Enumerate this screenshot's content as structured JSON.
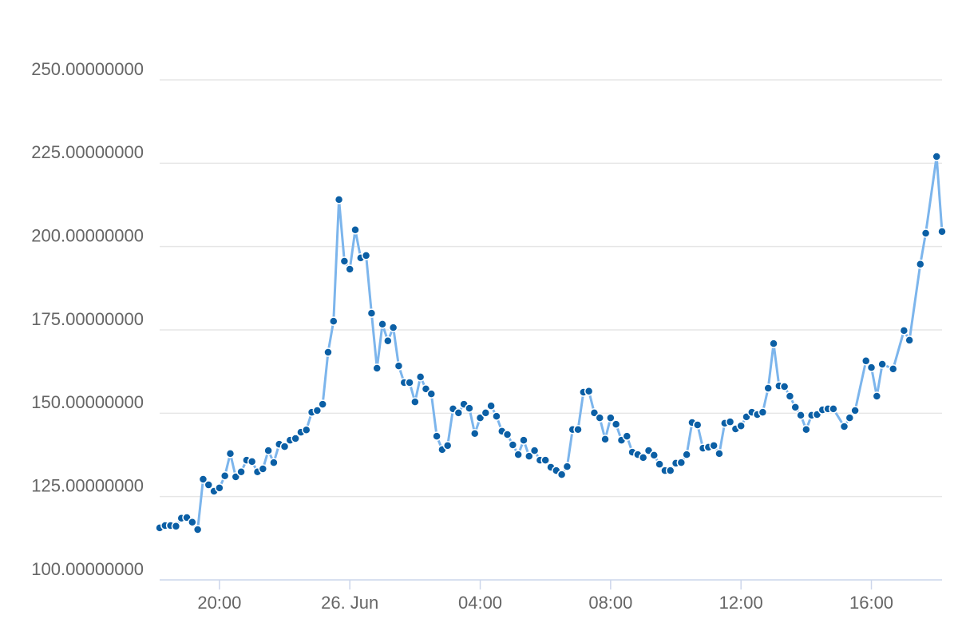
{
  "chart_data": {
    "type": "line",
    "x": [
      "06-25 18:10",
      "06-25 18:20",
      "06-25 18:30",
      "06-25 18:40",
      "06-25 18:50",
      "06-25 19:00",
      "06-25 19:10",
      "06-25 19:20",
      "06-25 19:30",
      "06-25 19:40",
      "06-25 19:50",
      "06-25 20:00",
      "06-25 20:10",
      "06-25 20:20",
      "06-25 20:30",
      "06-25 20:40",
      "06-25 20:50",
      "06-25 21:00",
      "06-25 21:10",
      "06-25 21:20",
      "06-25 21:30",
      "06-25 21:40",
      "06-25 21:50",
      "06-25 22:00",
      "06-25 22:10",
      "06-25 22:20",
      "06-25 22:30",
      "06-25 22:40",
      "06-25 22:50",
      "06-25 23:00",
      "06-25 23:10",
      "06-25 23:20",
      "06-25 23:30",
      "06-25 23:40",
      "06-25 23:50",
      "06-26 00:00",
      "06-26 00:10",
      "06-26 00:20",
      "06-26 00:30",
      "06-26 00:40",
      "06-26 00:50",
      "06-26 01:00",
      "06-26 01:10",
      "06-26 01:20",
      "06-26 01:30",
      "06-26 01:40",
      "06-26 01:50",
      "06-26 02:00",
      "06-26 02:10",
      "06-26 02:20",
      "06-26 02:30",
      "06-26 02:40",
      "06-26 02:50",
      "06-26 03:00",
      "06-26 03:10",
      "06-26 03:20",
      "06-26 03:30",
      "06-26 03:40",
      "06-26 03:50",
      "06-26 04:00",
      "06-26 04:10",
      "06-26 04:20",
      "06-26 04:30",
      "06-26 04:40",
      "06-26 04:50",
      "06-26 05:00",
      "06-26 05:10",
      "06-26 05:20",
      "06-26 05:30",
      "06-26 05:40",
      "06-26 05:50",
      "06-26 06:00",
      "06-26 06:10",
      "06-26 06:20",
      "06-26 06:30",
      "06-26 06:40",
      "06-26 06:50",
      "06-26 07:00",
      "06-26 07:10",
      "06-26 07:20",
      "06-26 07:30",
      "06-26 07:40",
      "06-26 07:50",
      "06-26 08:00",
      "06-26 08:10",
      "06-26 08:20",
      "06-26 08:30",
      "06-26 08:40",
      "06-26 08:50",
      "06-26 09:00",
      "06-26 09:10",
      "06-26 09:20",
      "06-26 09:30",
      "06-26 09:40",
      "06-26 09:50",
      "06-26 10:00",
      "06-26 10:10",
      "06-26 10:20",
      "06-26 10:30",
      "06-26 10:40",
      "06-26 10:50",
      "06-26 11:00",
      "06-26 11:10",
      "06-26 11:20",
      "06-26 11:30",
      "06-26 11:40",
      "06-26 11:50",
      "06-26 12:00",
      "06-26 12:10",
      "06-26 12:20",
      "06-26 12:30",
      "06-26 12:40",
      "06-26 12:50",
      "06-26 13:00",
      "06-26 13:10",
      "06-26 13:20",
      "06-26 13:30",
      "06-26 13:40",
      "06-26 13:50",
      "06-26 14:00",
      "06-26 14:10",
      "06-26 14:20",
      "06-26 14:30",
      "06-26 14:40",
      "06-26 14:50",
      "06-26 15:10",
      "06-26 15:20",
      "06-26 15:30",
      "06-26 15:50",
      "06-26 16:00",
      "06-26 16:10",
      "06-26 16:20",
      "06-26 16:40",
      "06-26 17:00",
      "06-26 17:10",
      "06-26 17:30",
      "06-26 17:40",
      "06-26 18:00",
      "06-26 18:10"
    ],
    "values": [
      115.6,
      116.3,
      116.3,
      116.1,
      118.5,
      118.7,
      117.3,
      115.1,
      130.2,
      128.5,
      126.6,
      127.6,
      131.2,
      137.9,
      130.9,
      132.4,
      135.9,
      135.5,
      132.4,
      133.3,
      138.8,
      135.2,
      140.7,
      140.0,
      141.9,
      142.4,
      144.3,
      145.0,
      150.3,
      150.8,
      152.7,
      168.3,
      177.6,
      214.1,
      195.6,
      193.2,
      205.0,
      196.6,
      197.3,
      180.0,
      163.5,
      176.7,
      171.7,
      175.7,
      164.2,
      159.2,
      159.2,
      153.4,
      160.9,
      157.3,
      155.8,
      143.1,
      139.1,
      140.3,
      151.3,
      150.1,
      152.7,
      151.5,
      143.9,
      148.6,
      150.1,
      152.2,
      149.1,
      144.6,
      143.6,
      140.5,
      137.6,
      141.9,
      137.1,
      138.8,
      135.9,
      135.9,
      133.8,
      132.8,
      131.6,
      134.0,
      145.1,
      145.1,
      156.3,
      156.6,
      150.1,
      148.6,
      142.2,
      148.6,
      146.7,
      141.9,
      143.1,
      138.3,
      137.6,
      136.7,
      138.8,
      137.4,
      134.7,
      132.8,
      132.8,
      135.0,
      135.2,
      137.6,
      147.2,
      146.5,
      139.5,
      139.8,
      140.3,
      137.9,
      147.0,
      147.4,
      145.3,
      146.2,
      148.9,
      150.3,
      149.6,
      150.3,
      157.5,
      170.9,
      158.2,
      158.0,
      155.1,
      151.8,
      149.4,
      145.1,
      149.4,
      149.6,
      151.0,
      151.3,
      151.3,
      146.0,
      148.6,
      150.8,
      165.7,
      163.7,
      155.1,
      164.7,
      163.3,
      174.8,
      171.9,
      194.7,
      204.0,
      227.0,
      204.5
    ],
    "color": "#7cb5ec",
    "marker_color": "#0b5fa5",
    "xlim": [
      "06-25 18:10",
      "06-26 18:10"
    ],
    "xticks": [
      {
        "value": "06-25 20:00",
        "label": "20:00"
      },
      {
        "value": "06-26 00:00",
        "label": "26. Jun"
      },
      {
        "value": "06-26 04:00",
        "label": "04:00"
      },
      {
        "value": "06-26 08:00",
        "label": "08:00"
      },
      {
        "value": "06-26 12:00",
        "label": "12:00"
      },
      {
        "value": "06-26 16:00",
        "label": "16:00"
      }
    ],
    "ylim": [
      100,
      250
    ],
    "yticks": [
      {
        "value": 100,
        "label": "100.00000000"
      },
      {
        "value": 125,
        "label": "125.00000000"
      },
      {
        "value": 150,
        "label": "150.00000000"
      },
      {
        "value": 175,
        "label": "175.00000000"
      },
      {
        "value": 200,
        "label": "200.00000000"
      },
      {
        "value": 225,
        "label": "225.00000000"
      },
      {
        "value": 250,
        "label": "250.00000000"
      }
    ],
    "grid": true
  }
}
